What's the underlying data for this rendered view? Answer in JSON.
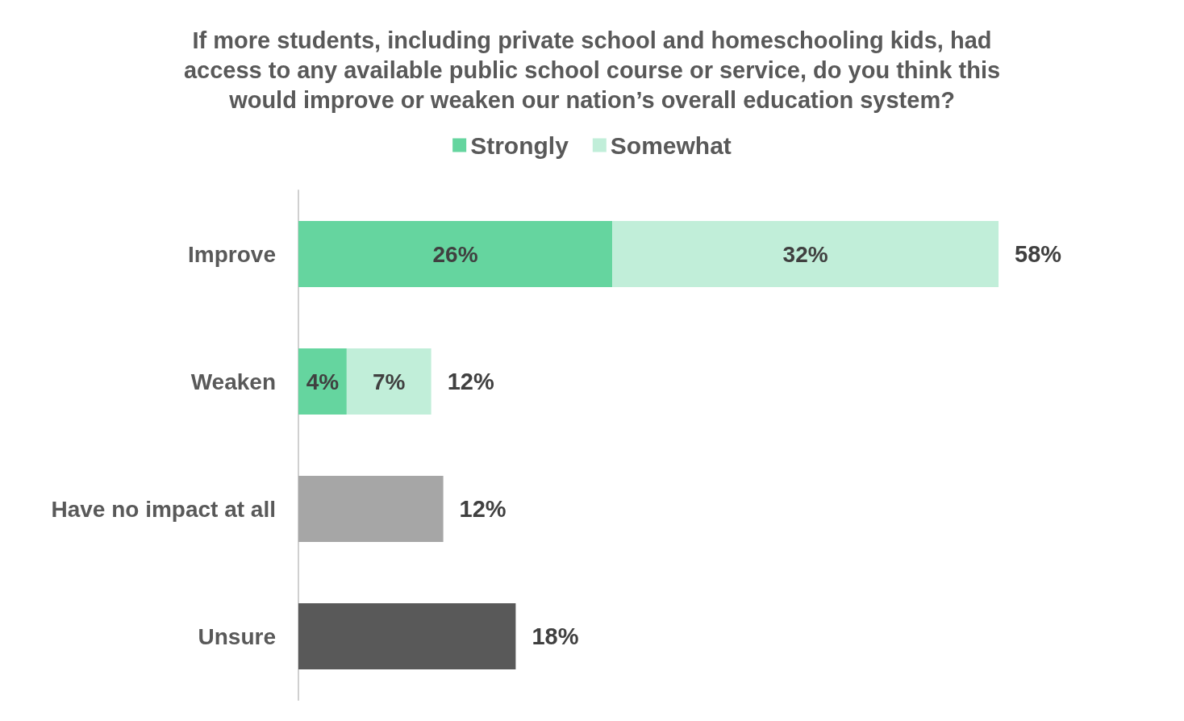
{
  "chart_data": {
    "type": "bar",
    "orientation": "horizontal",
    "stacked": true,
    "title": "If more students, including private school and homeschooling kids, had\naccess to any available public school course or service, do you think this\nwould improve or weaken our nation’s overall education system?",
    "categories": [
      "Improve",
      "Weaken",
      "Have no impact at all",
      "Unsure"
    ],
    "series": [
      {
        "name": "Strongly",
        "color": "#65d59f",
        "values": [
          26,
          4,
          null,
          null
        ],
        "value_labels": [
          "26%",
          "4%",
          null,
          null
        ]
      },
      {
        "name": "Somewhat",
        "color": "#c1eed9",
        "values": [
          32,
          7,
          null,
          null
        ],
        "value_labels": [
          "32%",
          "7%",
          null,
          null
        ]
      },
      {
        "colors": [
          null,
          null,
          "#a6a6a6",
          "#595959"
        ],
        "values": [
          null,
          null,
          12,
          18
        ]
      }
    ],
    "totals": [
      "58%",
      "12%",
      "12%",
      "18%"
    ],
    "legend": "top"
  }
}
